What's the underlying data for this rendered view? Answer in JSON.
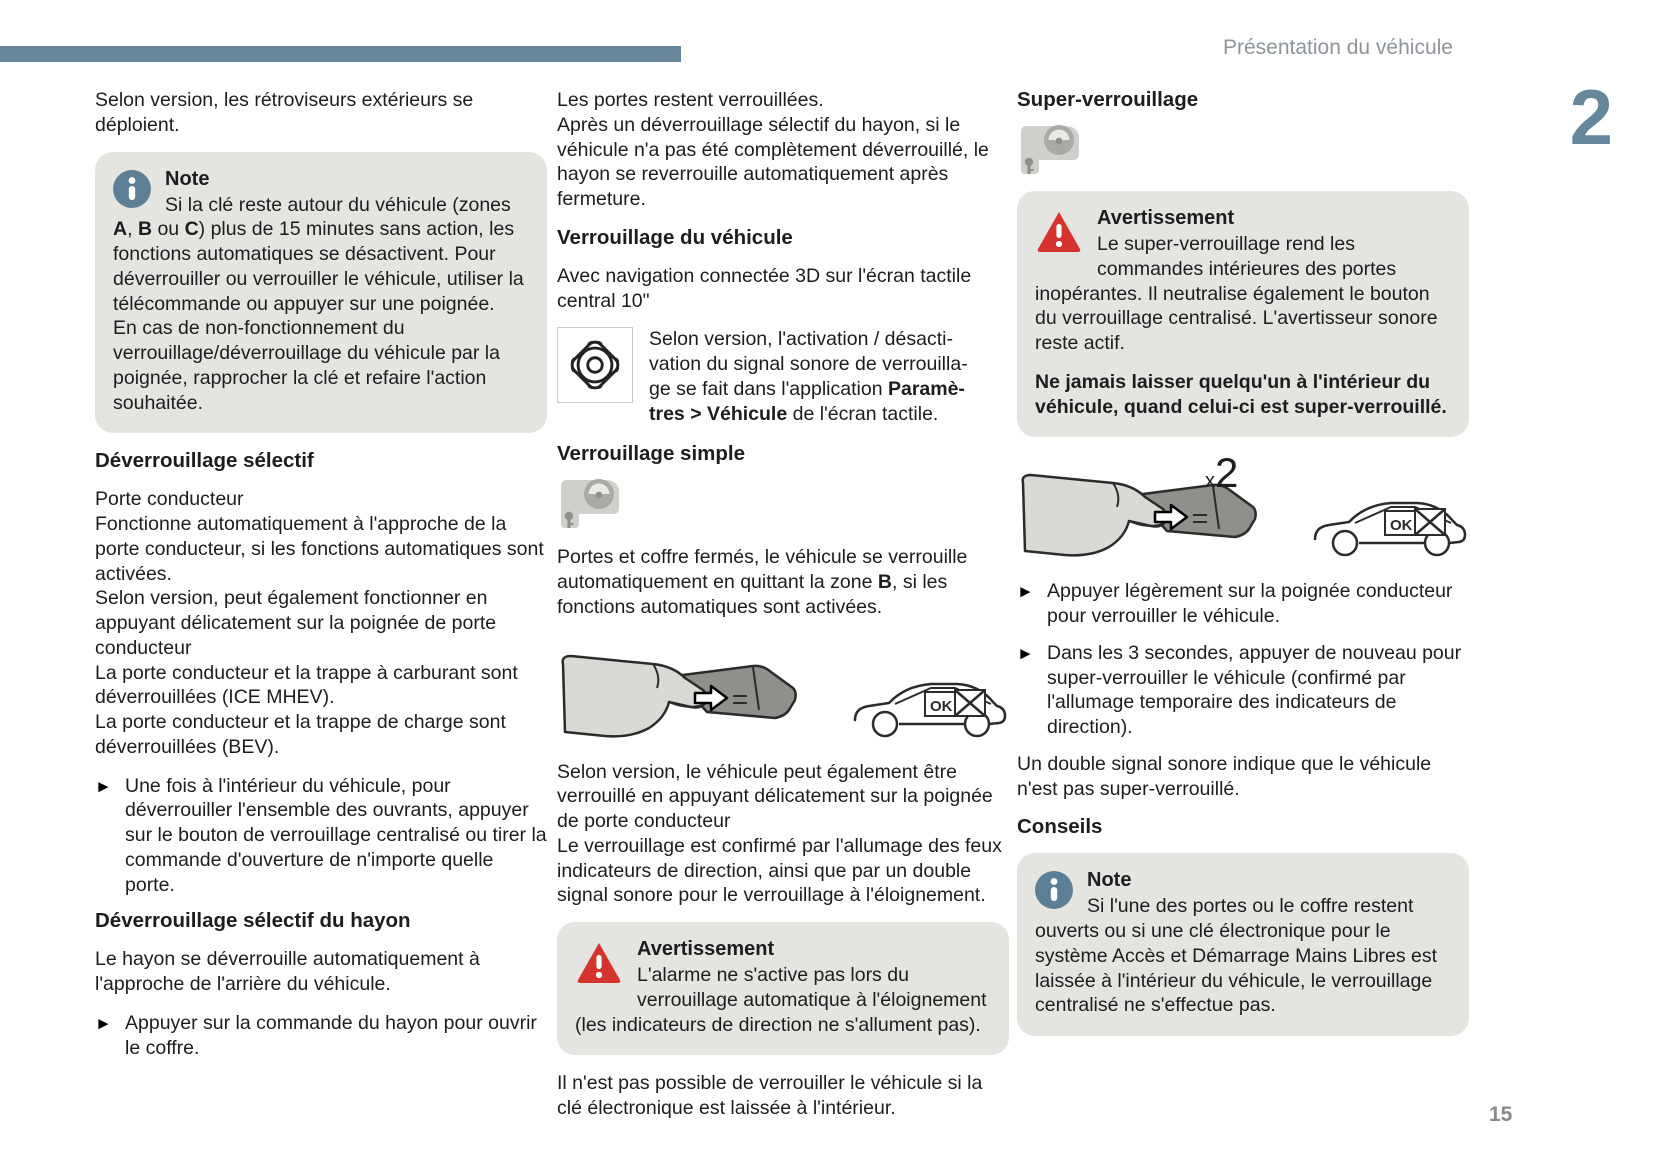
{
  "header": {
    "title": "Présentation du véhicule",
    "chapter": "2",
    "page_number": "15"
  },
  "ui": {
    "bullet_marker": "►",
    "car_ok_label": "OK"
  },
  "colors": {
    "accent_slate": "#65879c",
    "box_gray": "#e4e4e0",
    "warning_red": "#d5332e",
    "text": "#1d1d1f"
  },
  "col1": {
    "p1": "Selon version, les rétroviseurs extérieurs se déploient.",
    "note": {
      "title": "Note",
      "body": [
        {
          "t": "Si la clé reste autour du véhicule (zones "
        },
        {
          "t": "A",
          "b": true
        },
        {
          "t": ", "
        },
        {
          "t": "B",
          "b": true
        },
        {
          "t": " ou "
        },
        {
          "t": "C",
          "b": true
        },
        {
          "t": ") plus de 15 minutes sans action, les fonctions automatiques se désactivent. Pour déverrouiller ou verrouiller le véhicule, utiliser la télécommande ou appuyer sur une poignée.\nEn cas de non-fonctionnement du verrouillage/déverrouillage du véhicule par la poignée, rapprocher la clé et refaire l'action souhaitée."
        }
      ]
    },
    "h1": "Déverrouillage sélectif",
    "p2": "Porte conducteur\nFonctionne automatiquement à l'approche de la porte conducteur, si les fonctions automatiques sont activées.\nSelon version, peut également fonctionner en appuyant délicatement sur la poignée de porte conducteur\nLa porte conducteur et la trappe à carburant sont déverrouillées (ICE MHEV).\nLa porte conducteur et la trappe de charge sont déverrouillées (BEV).",
    "b1": "Une fois à l'intérieur du véhicule, pour déverrouiller l'ensemble des ouvrants, appuyer sur le bouton de verrouillage centralisé ou tirer la commande d'ouverture de n'importe quelle porte.",
    "h2": "Déverrouillage sélectif du hayon",
    "p3": "Le hayon se déverrouille automatiquement à l'approche de l'arrière du véhicule.",
    "b2": "Appuyer sur la commande du hayon pour ouvrir le coffre."
  },
  "col2": {
    "p1": "Les portes restent verrouillées.\nAprès un déverrouillage sélectif du hayon, si le véhicule n'a pas été complètement déverrouillé, le hayon se reverrouille automatiquement après fermeture.",
    "h1": "Verrouillage du véhicule",
    "p2": "Avec navigation connectée 3D sur l'écran tactile central 10\"",
    "gear_text": [
      {
        "t": "Selon version, l'activation / désacti-\nvation du signal sonore de verrouilla-\nge se fait dans l'application "
      },
      {
        "t": "Paramè-\ntres > Véhicule",
        "b": true
      },
      {
        "t": " de l'écran tactile."
      }
    ],
    "h2": "Verrouillage simple",
    "p3": [
      {
        "t": "Portes et coffre fermés, le véhicule se verrouille automatiquement en quittant la zone "
      },
      {
        "t": "B",
        "b": true
      },
      {
        "t": ", si les fonctions automatiques sont activées."
      }
    ],
    "p4": "Selon version, le véhicule peut également être verrouillé en appuyant délicatement sur la poignée de porte conducteur\nLe verrouillage est confirmé par l'allumage des feux indicateurs de direction, ainsi que par un double signal sonore pour le verrouillage à l'éloignement.",
    "warn": {
      "title": "Avertissement",
      "body": "L'alarme ne s'active pas lors du verrouillage automatique à l'éloignement (les indicateurs de direction ne s'allument pas)."
    },
    "p5": "Il n'est pas possible de verrouiller le véhicule si la clé électronique est laissée à l'intérieur."
  },
  "col3": {
    "h1": "Super-verrouillage",
    "warn": {
      "title": "Avertissement",
      "body": "Le super-verrouillage rend les commandes intérieures des portes inopérantes. Il neutralise également le bouton du verrouillage centralisé. L'avertisseur sonore reste actif.",
      "bold": "Ne jamais laisser quelqu'un à l'intérieur du véhicule, quand celui-ci est super-verrouillé."
    },
    "x2": {
      "times": "x",
      "count": "2"
    },
    "b1": "Appuyer légèrement sur la poignée conducteur pour verrouiller le véhicule.",
    "b2": "Dans les 3 secondes, appuyer de nouveau pour super-verrouiller le véhicule (confirmé par l'allumage temporaire des indicateurs de direction).",
    "p1": "Un double signal sonore indique que le véhicule n'est pas super-verrouillé.",
    "h2": "Conseils",
    "note": {
      "title": "Note",
      "body": "Si l'une des portes ou le coffre restent ouverts ou si une clé électronique pour le système Accès et Démarrage Mains Libres est laissée à l'intérieur du véhicule, le verrouillage centralisé ne s'effectue pas."
    }
  }
}
